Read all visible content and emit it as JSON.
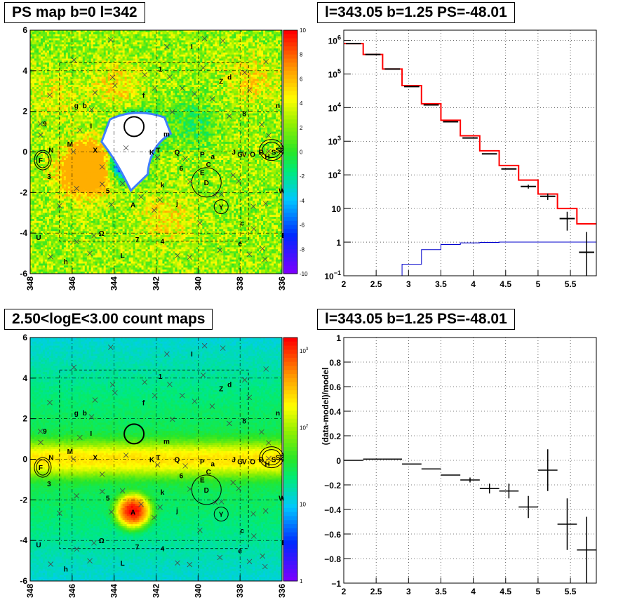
{
  "titles": {
    "tl": "PS map b=0 l=342",
    "tr": "l=343.05 b=1.25 PS=-48.01",
    "bl": "2.50<logE<3.00 count maps",
    "br": "l=343.05 b=1.25 PS=-48.01"
  },
  "colors": {
    "model": "#ff0000",
    "data": "#000000",
    "background": "#0000cc",
    "map_bg": "#22dd33",
    "marker": "#333333"
  },
  "chart_data": [
    {
      "type": "heatmap",
      "id": "ps-map",
      "title": "PS map b=0 l=342",
      "xlim": [
        348,
        336
      ],
      "ylim": [
        -6,
        6
      ],
      "xticks": [
        "348",
        "346",
        "344",
        "342",
        "340",
        "338",
        "336"
      ],
      "yticks": [
        "-6",
        "-4",
        "-2",
        "0",
        "2",
        "4",
        "6"
      ],
      "colorbar": {
        "range": [
          -10,
          10
        ],
        "ticks": [
          "10",
          "8",
          "6",
          "4",
          "2",
          "0",
          "-2",
          "-4",
          "-6",
          "-8",
          "-10"
        ]
      },
      "blobs": [
        {
          "l": 343.1,
          "b": 0.8,
          "value": -10
        },
        {
          "l": 343.6,
          "b": -0.6,
          "value": -10
        },
        {
          "l": 342.6,
          "b": 1.0,
          "value": -10
        },
        {
          "l": 345.0,
          "b": -0.7,
          "value": 9
        },
        {
          "l": 345.5,
          "b": -1.0,
          "value": 7
        },
        {
          "l": 343.8,
          "b": 3.3,
          "value": 3
        },
        {
          "l": 340.2,
          "b": 1.4,
          "value": -3
        },
        {
          "l": 337.5,
          "b": 3.6,
          "value": 3
        },
        {
          "l": 341.5,
          "b": -3.3,
          "value": 3
        },
        {
          "l": 346.8,
          "b": 2.8,
          "value": 2
        }
      ]
    },
    {
      "type": "line",
      "id": "spectrum",
      "title": "l=343.05 b=1.25 PS=-48.01",
      "xlim": [
        2,
        5.9
      ],
      "ylim": [
        0.1,
        2000000
      ],
      "yscale": "log",
      "xticks": [
        "2",
        "2.5",
        "3",
        "3.5",
        "4",
        "4.5",
        "5",
        "5.5"
      ],
      "yticks": [
        {
          "value": 1000000,
          "base": "10",
          "exp": "6"
        },
        {
          "value": 100000,
          "base": "10",
          "exp": "5"
        },
        {
          "value": 10000,
          "base": "10",
          "exp": "4"
        },
        {
          "value": 1000,
          "base": "10",
          "exp": "3"
        },
        {
          "value": 100,
          "base": "10",
          "exp": "2"
        },
        {
          "value": 10,
          "base": "10",
          "exp": ""
        },
        {
          "value": 1,
          "base": "1",
          "exp": ""
        },
        {
          "value": 0.1,
          "base": "10",
          "exp": "−1"
        }
      ],
      "grid": true,
      "bin_edges": [
        2.0,
        2.3,
        2.6,
        2.9,
        3.2,
        3.5,
        3.8,
        4.1,
        4.4,
        4.7,
        5.0,
        5.3,
        5.6,
        5.9
      ],
      "series": [
        {
          "name": "model",
          "values": [
            800000,
            380000,
            140000,
            45000,
            13000,
            4200,
            1450,
            520,
            190,
            70,
            27,
            10,
            3.5
          ]
        },
        {
          "name": "background",
          "values": [
            0.05,
            0.05,
            0.05,
            0.22,
            0.6,
            0.85,
            0.95,
            0.98,
            1.0,
            1.0,
            1.0,
            1.0,
            1.0
          ]
        },
        {
          "name": "data",
          "values": [
            800000,
            380000,
            140000,
            42000,
            12000,
            3800,
            1250,
            420,
            150,
            45,
            23,
            5,
            0.5
          ],
          "err_lo": [
            0,
            0,
            0,
            0,
            0,
            0,
            0,
            0,
            0,
            6,
            5,
            2.8,
            0.5
          ],
          "err_hi": [
            0,
            0,
            0,
            0,
            0,
            0,
            0,
            0,
            0,
            6,
            5,
            3,
            1.5
          ]
        }
      ]
    },
    {
      "type": "heatmap",
      "id": "count-map",
      "title": "2.50<logE<3.00 count maps",
      "xlim": [
        348,
        336
      ],
      "ylim": [
        -6,
        6
      ],
      "xticks": [
        "348",
        "346",
        "344",
        "342",
        "340",
        "338",
        "336"
      ],
      "yticks": [
        "-6",
        "-4",
        "-2",
        "0",
        "2",
        "4",
        "6"
      ],
      "colorbar": {
        "scale": "log",
        "range": [
          1,
          1500
        ],
        "ticks": [
          {
            "value": 1000,
            "base": "10",
            "exp": "3"
          },
          {
            "value": 100,
            "base": "10",
            "exp": "2"
          },
          {
            "value": 10,
            "base": "10",
            "exp": ""
          },
          {
            "value": 1,
            "base": "1",
            "exp": ""
          }
        ]
      },
      "band": {
        "b_center": 0,
        "peak": 220
      },
      "blobs": [
        {
          "l": 343.1,
          "b": -2.55,
          "value": 1500
        }
      ]
    },
    {
      "type": "scatter",
      "id": "residuals",
      "title": "l=343.05 b=1.25 PS=-48.01",
      "ylabel": "(data-model)/model",
      "xlim": [
        2,
        5.9
      ],
      "ylim": [
        -1,
        1
      ],
      "xticks": [
        "2",
        "2.5",
        "3",
        "3.5",
        "4",
        "4.5",
        "5",
        "5.5"
      ],
      "yticks": [
        "1",
        "0.8",
        "0.6",
        "0.4",
        "0.2",
        "0",
        "−0.2",
        "−0.4",
        "−0.6",
        "−0.8",
        "−1"
      ],
      "grid": true,
      "x": [
        2.15,
        2.45,
        2.75,
        3.05,
        3.35,
        3.65,
        3.95,
        4.25,
        4.55,
        4.85,
        5.15,
        5.45,
        5.75
      ],
      "xerr": [
        0.15,
        0.15,
        0.15,
        0.15,
        0.15,
        0.15,
        0.15,
        0.15,
        0.15,
        0.15,
        0.15,
        0.15,
        0.15
      ],
      "y": [
        0.0,
        0.01,
        0.01,
        -0.03,
        -0.07,
        -0.12,
        -0.16,
        -0.23,
        -0.25,
        -0.38,
        -0.08,
        -0.52,
        -0.73
      ],
      "yerr": [
        0.0,
        0.0,
        0.0,
        0.0,
        0.0,
        0.0,
        0.02,
        0.04,
        0.06,
        0.09,
        0.17,
        0.21,
        0.27
      ]
    }
  ],
  "sources": [
    {
      "label": "I",
      "l": 340.3,
      "b": 5.2
    },
    {
      "label": "1",
      "l": 341.8,
      "b": 4.1
    },
    {
      "label": "Z",
      "l": 338.9,
      "b": 3.5
    },
    {
      "label": "d",
      "l": 338.5,
      "b": 3.7
    },
    {
      "label": "f",
      "l": 342.6,
      "b": 2.8
    },
    {
      "label": "g",
      "l": 345.8,
      "b": 2.3
    },
    {
      "label": "b",
      "l": 345.4,
      "b": 2.3
    },
    {
      "label": "n",
      "l": 336.2,
      "b": 2.3
    },
    {
      "label": "8",
      "l": 337.8,
      "b": 1.9
    },
    {
      "label": "9",
      "l": 347.3,
      "b": 1.4
    },
    {
      "label": "I",
      "l": 345.1,
      "b": 1.3
    },
    {
      "label": "m",
      "l": 341.5,
      "b": 0.9
    },
    {
      "label": "N",
      "l": 347.0,
      "b": 0.1
    },
    {
      "label": "M",
      "l": 346.1,
      "b": 0.4
    },
    {
      "label": "X",
      "l": 344.9,
      "b": 0.1
    },
    {
      "label": "K",
      "l": 342.2,
      "b": 0.0
    },
    {
      "label": "T",
      "l": 341.9,
      "b": 0.1
    },
    {
      "label": "Q",
      "l": 341.0,
      "b": 0.0
    },
    {
      "label": "P",
      "l": 339.8,
      "b": -0.1
    },
    {
      "label": "a",
      "l": 339.3,
      "b": -0.2
    },
    {
      "label": "J",
      "l": 338.3,
      "b": 0.0
    },
    {
      "label": "G",
      "l": 338.0,
      "b": -0.1
    },
    {
      "label": "V",
      "l": 337.8,
      "b": -0.1
    },
    {
      "label": "O",
      "l": 337.4,
      "b": -0.1
    },
    {
      "label": "R",
      "l": 337.0,
      "b": 0.0
    },
    {
      "label": "H",
      "l": 336.7,
      "b": -0.2
    },
    {
      "label": "S",
      "l": 336.4,
      "b": 0.0
    },
    {
      "label": "S2",
      "l": 336.1,
      "b": 0.1
    },
    {
      "label": "F",
      "l": 347.5,
      "b": -0.4
    },
    {
      "label": "3",
      "l": 347.1,
      "b": -1.2
    },
    {
      "label": "6",
      "l": 340.8,
      "b": -0.8
    },
    {
      "label": "C",
      "l": 339.5,
      "b": -0.6
    },
    {
      "label": "E",
      "l": 339.8,
      "b": -1.0
    },
    {
      "label": "D",
      "l": 339.6,
      "b": -1.5
    },
    {
      "label": "k",
      "l": 341.7,
      "b": -1.6
    },
    {
      "label": "5",
      "l": 344.3,
      "b": -1.9
    },
    {
      "label": "W",
      "l": 336.0,
      "b": -1.9
    },
    {
      "label": "j",
      "l": 341.0,
      "b": -2.5
    },
    {
      "label": "A",
      "l": 343.1,
      "b": -2.6
    },
    {
      "label": "Y",
      "l": 338.9,
      "b": -2.7
    },
    {
      "label": "c",
      "l": 337.9,
      "b": -3.5
    },
    {
      "label": "U",
      "l": 347.6,
      "b": -4.2
    },
    {
      "label": "Ω",
      "l": 344.6,
      "b": -4.0
    },
    {
      "label": "B",
      "l": 335.9,
      "b": -4.1
    },
    {
      "label": "7",
      "l": 342.9,
      "b": -4.3
    },
    {
      "label": "4",
      "l": 341.7,
      "b": -4.4
    },
    {
      "label": "e",
      "l": 338.0,
      "b": -4.5
    },
    {
      "label": "L",
      "l": 343.6,
      "b": -5.1
    },
    {
      "label": "h",
      "l": 346.3,
      "b": -5.4
    }
  ]
}
